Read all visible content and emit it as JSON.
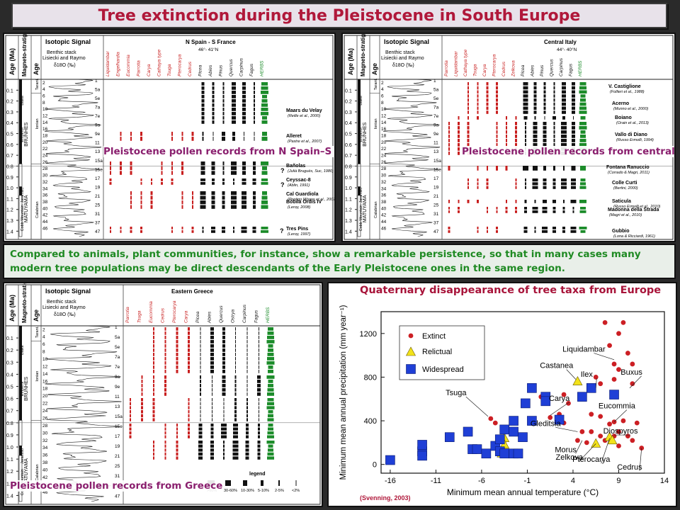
{
  "title": "Tree extinction during the Pleistocene in South Europe",
  "note": "Compared to animals, plant communities, for instance, show a remarkable persistence, so that in many cases many modern tree populations may be direct descendants of the Early Pleistocene ones in the same region.",
  "common": {
    "age_header": "Age (Ma)",
    "magneto_header": "Magneto-stratigraphy",
    "age_col": "Age",
    "isotopic_signal": "Isotopic Signal",
    "benthic": "Benthic stack, Lisiecki and Raymo, 2005",
    "d18o": "δ18O (‰)",
    "brunhes": "BRUNHES",
    "matuyama": "MATUYAMA",
    "emperor": "Emperor",
    "blake": "Blake",
    "jaramillo": "Jaramillo",
    "cobb": "Cobb Mountain",
    "tarant": "Tarant.",
    "ionian": "Ionian",
    "calabrian": "Calabrian",
    "age_ticks": [
      "0.1",
      "0.2",
      "0.3",
      "0.4",
      "0.5",
      "0.6",
      "0.7",
      "0.8",
      "0.9",
      "1.0",
      "1.1",
      "1.2",
      "1.3",
      "1.4"
    ],
    "mis_left": [
      "2",
      "4",
      "6",
      "8",
      "10",
      "12",
      "14",
      "16",
      "18",
      "20",
      "22",
      "24",
      "26",
      "28",
      "30",
      "32",
      "34",
      "36",
      "38",
      "40",
      "42",
      "44",
      "46"
    ],
    "mis_right": [
      "1",
      "5a",
      "5e",
      "7a",
      "7e",
      "9a",
      "9e",
      "11",
      "13",
      "15a",
      "15e",
      "17",
      "19",
      "21",
      "25",
      "31",
      "37",
      "47"
    ],
    "legend_title": "legend",
    "legend_items": [
      ">60%",
      "30-60%",
      "10-30%",
      "5-10%",
      "2-5%",
      "<2%"
    ]
  },
  "panel_spain": {
    "region": "N Spain - S France",
    "coords": "46°- 41°N",
    "extinct_taxa": [
      "Liquidambar",
      "Engelhardia",
      "Eucommia",
      "Parrotia",
      "Carya",
      "Cathaya type",
      "Tsuga",
      "Pterocarya",
      "Cedrus"
    ],
    "living_taxa": [
      "Picea",
      "Abies",
      "Pinus",
      "Quercus",
      "Carpinus",
      "Fagus",
      "HERBS"
    ],
    "sites": [
      {
        "name": "Maars du Velay",
        "ref": "(Reille et al., 2000)"
      },
      {
        "name": "Alleret",
        "ref": "(Pastre et al., 2007)"
      },
      {
        "name": "Bañolas",
        "ref": "(Julià Bruguès, Suc, 1980)"
      },
      {
        "name": "Ceyssac-8",
        "ref": "(Ablin, 1991)"
      },
      {
        "name": "Cal Guardiola",
        "ref": "(Postigo Mijarra et al., 2007)"
      },
      {
        "name": "Bòbila Ordis IV",
        "ref": "(Leroy, 2008)"
      },
      {
        "name": "Tres Pins",
        "ref": "(Leroy, 1997)"
      }
    ],
    "caption": "Pleistocene pollen records from N Spain–S France"
  },
  "panel_italy": {
    "region": "Central Italy",
    "coords": "44°- 40°N",
    "extinct_taxa": [
      "Parrotia",
      "Liquidambar",
      "Cathaya type",
      "Tsuga",
      "Carya",
      "Pterocarya",
      "Cedrus",
      "Zelkova"
    ],
    "living_taxa": [
      "Picea",
      "Abies",
      "Pinus",
      "Quercus",
      "Carpinus",
      "Fagus",
      "HERBS"
    ],
    "sites": [
      {
        "name": "V. Castiglione",
        "ref": "(Follieri et al., 1988)"
      },
      {
        "name": "Acerno",
        "ref": "(Munno et al., 2000)"
      },
      {
        "name": "Boiano",
        "ref": "(Orain et al., 2013)"
      },
      {
        "name": "Vallo di Diano",
        "ref": "(Russo Ermolli, 1994)"
      },
      {
        "name": "Fontana Ranuccio",
        "ref": "(Corrado & Magri, 2011)"
      },
      {
        "name": "Colle Curti",
        "ref": "(Bertini, 2000)"
      },
      {
        "name": "Saticula",
        "ref": "(Russo Ermolli et al., 2010)"
      },
      {
        "name": "Madonna della Strada",
        "ref": "(Magri et al., 2010)"
      },
      {
        "name": "Gubbio",
        "ref": "(Lona & Ricciardi, 1961)"
      }
    ],
    "caption": "Pleistocene pollen records from central Italy"
  },
  "panel_greece": {
    "region": "Eastern Greece",
    "extinct_taxa": [
      "Parrotia",
      "Tsuga",
      "Eucommia",
      "Cedrus",
      "Pterocarya",
      "Carya"
    ],
    "living_taxa": [
      "Picea",
      "Abies",
      "Quercus",
      "Ostrya",
      "Carpinus",
      "Fagus",
      "HERBS"
    ],
    "caption": "Pleistocene pollen records from Greece"
  },
  "scatter": {
    "title": "Quaternary disappearance of tree taxa from Europe",
    "source": "(Svenning, 2003)",
    "legend": [
      "Extinct",
      "Relictual",
      "Widespread"
    ],
    "taxa_labels": [
      "Liquidambar",
      "Castanea",
      "Ilex",
      "Buxus",
      "Tsuga",
      "Carya",
      "Eucommia",
      "Gleditsia",
      "Diospyros",
      "Morus",
      "Zelkova",
      "Pterocarya",
      "Cedrus"
    ],
    "colors": {
      "extinct": "#cc1f24",
      "relictual": "#f2e21a",
      "widespread": "#1f3fd6"
    }
  },
  "chart_data": {
    "type": "scatter",
    "title": "Quaternary disappearance of tree taxa from Europe",
    "xlabel": "Minimum mean annual temperature (°C)",
    "ylabel": "Minimum mean annual precipitation (mm year⁻¹)",
    "xlim": [
      -17,
      14
    ],
    "ylim": [
      -80,
      1400
    ],
    "xticks": [
      -16,
      -11,
      -6,
      -1,
      4,
      9,
      14
    ],
    "yticks": [
      0,
      400,
      800,
      1200
    ],
    "legend": "top-left",
    "series": [
      {
        "name": "Extinct",
        "marker": "circle",
        "points": [
          [
            7.5,
            1300
          ],
          [
            9.5,
            1300
          ],
          [
            9,
            1200
          ],
          [
            8,
            1090
          ],
          [
            10,
            1020
          ],
          [
            8.5,
            920
          ],
          [
            10.5,
            920
          ],
          [
            9,
            870
          ],
          [
            8.5,
            780
          ],
          [
            6.5,
            800
          ],
          [
            10.5,
            740
          ],
          [
            7,
            740
          ],
          [
            3,
            640
          ],
          [
            3.5,
            560
          ],
          [
            0.5,
            620
          ],
          [
            1.5,
            430
          ],
          [
            2.5,
            460
          ],
          [
            3,
            380
          ],
          [
            6,
            460
          ],
          [
            7,
            440
          ],
          [
            8,
            370
          ],
          [
            8.5,
            390
          ],
          [
            9.5,
            400
          ],
          [
            11,
            380
          ],
          [
            5,
            300
          ],
          [
            6,
            300
          ],
          [
            7,
            260
          ],
          [
            8.5,
            260
          ],
          [
            9,
            300
          ],
          [
            10,
            260
          ],
          [
            4.5,
            220
          ],
          [
            5.5,
            200
          ],
          [
            7.5,
            220
          ],
          [
            9,
            170
          ],
          [
            10.5,
            220
          ],
          [
            11.5,
            150
          ],
          [
            -5,
            420
          ],
          [
            -4.5,
            380
          ],
          [
            -3.5,
            220
          ]
        ]
      },
      {
        "name": "Relictual",
        "marker": "triangle",
        "points": [
          [
            4.5,
            760
          ],
          [
            -3.5,
            240
          ],
          [
            -3.5,
            180
          ],
          [
            -3.8,
            100
          ],
          [
            6.5,
            190
          ],
          [
            8,
            250
          ],
          [
            8.3,
            220
          ]
        ]
      },
      {
        "name": "Widespread",
        "marker": "square",
        "points": [
          [
            -16,
            40
          ],
          [
            -12.5,
            120
          ],
          [
            -12.5,
            80
          ],
          [
            -12.5,
            180
          ],
          [
            -9.5,
            250
          ],
          [
            -7.5,
            300
          ],
          [
            -7,
            140
          ],
          [
            -6.5,
            140
          ],
          [
            -5.5,
            100
          ],
          [
            -4.5,
            170
          ],
          [
            -4,
            120
          ],
          [
            -3.5,
            100
          ],
          [
            -2.5,
            100
          ],
          [
            -2,
            100
          ],
          [
            -3.5,
            320
          ],
          [
            -2.5,
            400
          ],
          [
            -2.5,
            300
          ],
          [
            -1.5,
            250
          ],
          [
            -0.5,
            400
          ],
          [
            -1.2,
            560
          ],
          [
            -0.5,
            700
          ],
          [
            1,
            620
          ],
          [
            1,
            580
          ],
          [
            2.5,
            410
          ],
          [
            5,
            620
          ],
          [
            6,
            700
          ],
          [
            8.5,
            640
          ],
          [
            -4,
            230
          ]
        ]
      }
    ]
  }
}
